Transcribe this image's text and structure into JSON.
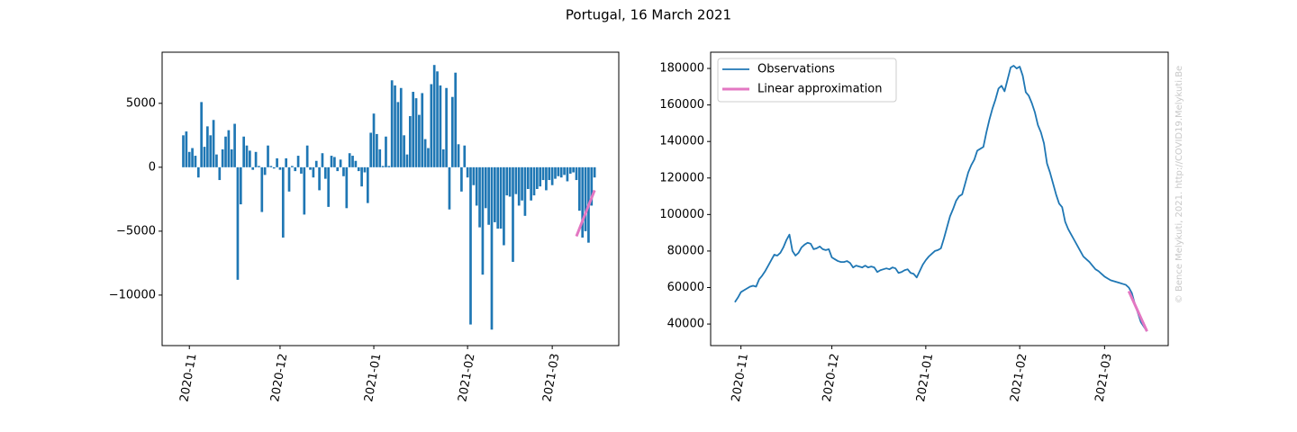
{
  "title": "Portugal, 16 March 2021",
  "watermark": "© Bence Melykuti, 2021. http://COVID19.Melykuti.Be",
  "chart_data": [
    {
      "type": "bar",
      "x": [
        -2,
        -1,
        0,
        1,
        2,
        3,
        4,
        5,
        6,
        7,
        8,
        9,
        10,
        11,
        12,
        13,
        14,
        15,
        16,
        17,
        18,
        19,
        20,
        21,
        22,
        23,
        24,
        25,
        26,
        27,
        28,
        29,
        30,
        31,
        32,
        33,
        34,
        35,
        36,
        37,
        38,
        39,
        40,
        41,
        42,
        43,
        44,
        45,
        46,
        47,
        48,
        49,
        50,
        51,
        52,
        53,
        54,
        55,
        56,
        57,
        58,
        59,
        60,
        61,
        62,
        63,
        64,
        65,
        66,
        67,
        68,
        69,
        70,
        71,
        72,
        73,
        74,
        75,
        76,
        77,
        78,
        79,
        80,
        81,
        82,
        83,
        84,
        85,
        86,
        87,
        88,
        89,
        90,
        91,
        92,
        93,
        94,
        95,
        96,
        97,
        98,
        99,
        100,
        101,
        102,
        103,
        104,
        105,
        106,
        107,
        108,
        109,
        110,
        111,
        112,
        113,
        114,
        115,
        116,
        117,
        118,
        119,
        120,
        121,
        122,
        123,
        124,
        125,
        126,
        127,
        128,
        129,
        130,
        131,
        132,
        133,
        134
      ],
      "values": [
        2500,
        2800,
        1200,
        1500,
        900,
        -800,
        5100,
        1600,
        3200,
        2500,
        3700,
        1000,
        -1000,
        1400,
        2400,
        2900,
        1400,
        3400,
        -8800,
        -2900,
        2400,
        1700,
        1300,
        -200,
        1200,
        100,
        -3500,
        -600,
        1700,
        100,
        -100,
        700,
        -200,
        -5500,
        700,
        -1900,
        100,
        -300,
        900,
        -500,
        -3700,
        1700,
        -200,
        -800,
        500,
        -1800,
        1100,
        -900,
        -3100,
        900,
        800,
        -300,
        600,
        -700,
        -3200,
        1100,
        900,
        500,
        -300,
        -1500,
        -400,
        -2800,
        2700,
        4200,
        2600,
        1400,
        100,
        2400,
        100,
        6800,
        6400,
        5100,
        6200,
        2500,
        1000,
        4000,
        5900,
        5400,
        4100,
        5800,
        2200,
        1500,
        6500,
        8000,
        7500,
        6400,
        1400,
        6200,
        -3300,
        5500,
        7400,
        1800,
        -1900,
        1700,
        -800,
        -12300,
        -1400,
        -3000,
        -4700,
        -8400,
        -3200,
        -4500,
        -12700,
        -4300,
        -4800,
        -4800,
        -6100,
        -2200,
        -2300,
        -7400,
        -2100,
        -3000,
        -2600,
        -3800,
        -1700,
        -2600,
        -2200,
        -1700,
        -1500,
        -1000,
        -1800,
        -1000,
        -1400,
        -900,
        -700,
        -800,
        -600,
        -1100,
        -500,
        -400,
        -1000,
        -3400,
        -5500,
        -5000,
        -5900,
        -3000,
        -800
      ],
      "color": "#1f77b4",
      "fit": {
        "x": [
          128,
          134
        ],
        "values": [
          -5400,
          -1800
        ],
        "color": "#e377c2"
      },
      "xlim": [
        -9,
        142
      ],
      "ylim": [
        -13950,
        9000
      ],
      "xticks": [
        {
          "value": 0,
          "label": "2020-11"
        },
        {
          "value": 30,
          "label": "2020-12"
        },
        {
          "value": 61,
          "label": "2021-01"
        },
        {
          "value": 92,
          "label": "2021-02"
        },
        {
          "value": 120,
          "label": "2021-03"
        }
      ],
      "yticks": [
        {
          "value": -10000,
          "label": "−10000"
        },
        {
          "value": -5000,
          "label": "−5000"
        },
        0,
        5000
      ]
    },
    {
      "type": "line",
      "series": [
        {
          "name": "Observations",
          "color": "#1f77b4",
          "x": [
            -2,
            -1,
            0,
            1,
            2,
            3,
            4,
            5,
            6,
            7,
            8,
            9,
            10,
            11,
            12,
            13,
            14,
            15,
            16,
            17,
            18,
            19,
            20,
            21,
            22,
            23,
            24,
            25,
            26,
            27,
            28,
            29,
            30,
            31,
            32,
            33,
            34,
            35,
            36,
            37,
            38,
            39,
            40,
            41,
            42,
            43,
            44,
            45,
            46,
            47,
            48,
            49,
            50,
            51,
            52,
            53,
            54,
            55,
            56,
            57,
            58,
            59,
            60,
            61,
            62,
            63,
            64,
            65,
            66,
            67,
            68,
            69,
            70,
            71,
            72,
            73,
            74,
            75,
            76,
            77,
            78,
            79,
            80,
            81,
            82,
            83,
            84,
            85,
            86,
            87,
            88,
            89,
            90,
            91,
            92,
            93,
            94,
            95,
            96,
            97,
            98,
            99,
            100,
            101,
            102,
            103,
            104,
            105,
            106,
            107,
            108,
            109,
            110,
            111,
            112,
            113,
            114,
            115,
            116,
            117,
            118,
            119,
            120,
            121,
            122,
            123,
            124,
            125,
            126,
            127,
            128,
            129,
            130,
            131,
            132,
            133,
            134
          ],
          "values": [
            52000,
            54500,
            57500,
            58500,
            59500,
            60500,
            61000,
            60500,
            64500,
            66500,
            69000,
            72000,
            75000,
            78000,
            77500,
            79000,
            82000,
            86000,
            89000,
            80000,
            77500,
            79000,
            82000,
            83500,
            84500,
            84000,
            81000,
            81500,
            82500,
            81000,
            80500,
            81000,
            76500,
            75500,
            74500,
            74000,
            74000,
            74500,
            73500,
            71000,
            72000,
            71500,
            71000,
            72000,
            71000,
            71500,
            71000,
            68500,
            69500,
            70000,
            70500,
            70000,
            71000,
            70500,
            68000,
            68500,
            69500,
            70000,
            68000,
            67500,
            65500,
            69000,
            72500,
            75000,
            77000,
            78500,
            80000,
            80500,
            81500,
            87000,
            93000,
            99000,
            103000,
            107500,
            110000,
            111000,
            117000,
            123000,
            127000,
            130000,
            135000,
            136000,
            137000,
            145000,
            152000,
            158000,
            163000,
            169000,
            170500,
            167500,
            174000,
            180500,
            181500,
            180000,
            181000,
            176000,
            167000,
            165000,
            161000,
            156000,
            149000,
            145000,
            139000,
            128000,
            123000,
            117000,
            111000,
            106000,
            104000,
            96000,
            92000,
            89000,
            86000,
            83000,
            80000,
            77000,
            75500,
            74000,
            72000,
            70000,
            69000,
            67500,
            66000,
            65000,
            64000,
            63500,
            63000,
            62500,
            62000,
            61500,
            60000,
            57000,
            51000,
            46000,
            41000,
            38500,
            36000
          ]
        },
        {
          "name": "Linear approximation",
          "color": "#e377c2",
          "x": [
            128,
            134
          ],
          "values": [
            58000,
            36000
          ]
        }
      ],
      "legend": "upper left",
      "xlim": [
        -10,
        141
      ],
      "ylim": [
        28200,
        188900
      ],
      "xticks": [
        {
          "value": 0,
          "label": "2020-11"
        },
        {
          "value": 30,
          "label": "2020-12"
        },
        {
          "value": 61,
          "label": "2021-01"
        },
        {
          "value": 92,
          "label": "2021-02"
        },
        {
          "value": 120,
          "label": "2021-03"
        }
      ],
      "yticks": [
        40000,
        60000,
        80000,
        100000,
        120000,
        140000,
        160000,
        180000
      ]
    }
  ]
}
